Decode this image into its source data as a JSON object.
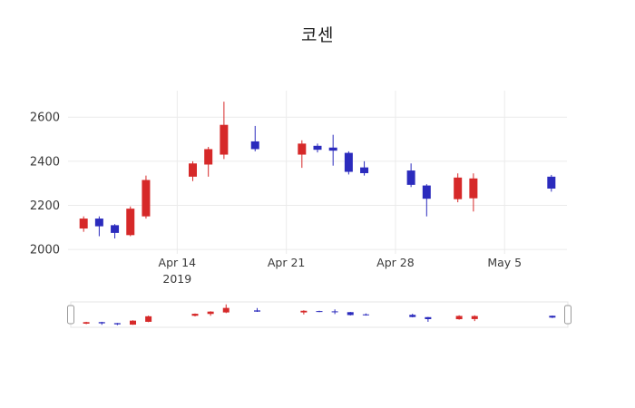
{
  "chart_data": {
    "type": "candlestick",
    "title": "코센",
    "increasing_color": "#d62929",
    "decreasing_color": "#2b2bbd",
    "grid_color": "#ebebeb",
    "tick_color": "#3a3a3a",
    "x_axis": {
      "range": [
        "2019-04-07",
        "2019-05-09"
      ],
      "ticks": [
        {
          "label": "Apr 14",
          "sublabel": "2019",
          "date": "2019-04-14"
        },
        {
          "label": "Apr 21",
          "sublabel": "",
          "date": "2019-04-21"
        },
        {
          "label": "Apr 28",
          "sublabel": "",
          "date": "2019-04-28"
        },
        {
          "label": "May 5",
          "sublabel": "",
          "date": "2019-05-05"
        }
      ]
    },
    "y_axis": {
      "range": [
        1980,
        2720
      ],
      "ticks": [
        2000,
        2200,
        2400,
        2600
      ]
    },
    "rangeslider": {
      "visible": true,
      "y_range": [
        2040,
        2690
      ]
    },
    "candles": [
      {
        "date": "2019-04-08",
        "open": 2095,
        "high": 2150,
        "low": 2080,
        "close": 2140
      },
      {
        "date": "2019-04-09",
        "open": 2140,
        "high": 2150,
        "low": 2060,
        "close": 2105
      },
      {
        "date": "2019-04-10",
        "open": 2110,
        "high": 2115,
        "low": 2050,
        "close": 2075
      },
      {
        "date": "2019-04-11",
        "open": 2065,
        "high": 2195,
        "low": 2060,
        "close": 2185
      },
      {
        "date": "2019-04-12",
        "open": 2150,
        "high": 2335,
        "low": 2140,
        "close": 2315
      },
      {
        "date": "2019-04-15",
        "open": 2330,
        "high": 2400,
        "low": 2310,
        "close": 2390
      },
      {
        "date": "2019-04-16",
        "open": 2385,
        "high": 2465,
        "low": 2330,
        "close": 2455
      },
      {
        "date": "2019-04-17",
        "open": 2430,
        "high": 2670,
        "low": 2410,
        "close": 2565
      },
      {
        "date": "2019-04-19",
        "open": 2490,
        "high": 2560,
        "low": 2445,
        "close": 2455
      },
      {
        "date": "2019-04-22",
        "open": 2430,
        "high": 2495,
        "low": 2370,
        "close": 2480
      },
      {
        "date": "2019-04-23",
        "open": 2470,
        "high": 2480,
        "low": 2440,
        "close": 2452
      },
      {
        "date": "2019-04-24",
        "open": 2462,
        "high": 2520,
        "low": 2380,
        "close": 2448
      },
      {
        "date": "2019-04-25",
        "open": 2438,
        "high": 2445,
        "low": 2340,
        "close": 2352
      },
      {
        "date": "2019-04-26",
        "open": 2372,
        "high": 2400,
        "low": 2335,
        "close": 2346
      },
      {
        "date": "2019-04-29",
        "open": 2358,
        "high": 2390,
        "low": 2283,
        "close": 2293
      },
      {
        "date": "2019-04-30",
        "open": 2290,
        "high": 2296,
        "low": 2150,
        "close": 2230
      },
      {
        "date": "2019-05-02",
        "open": 2228,
        "high": 2345,
        "low": 2214,
        "close": 2326
      },
      {
        "date": "2019-05-03",
        "open": 2232,
        "high": 2345,
        "low": 2172,
        "close": 2322
      },
      {
        "date": "2019-05-08",
        "open": 2330,
        "high": 2338,
        "low": 2262,
        "close": 2276
      }
    ]
  }
}
